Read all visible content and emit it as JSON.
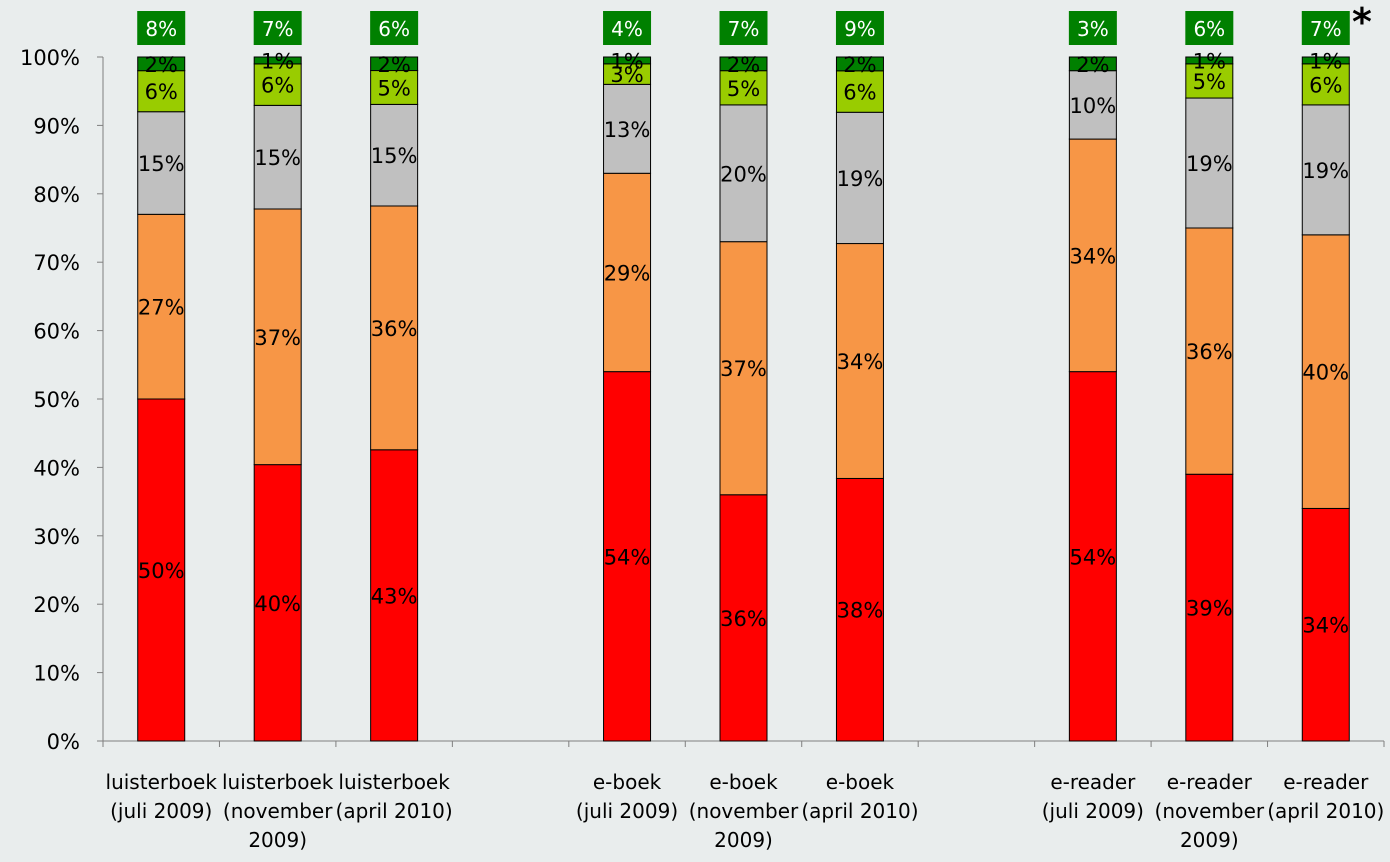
{
  "chart_data": {
    "type": "bar",
    "stacked": true,
    "title": "",
    "xlabel": "",
    "ylabel": "",
    "ylim": [
      0,
      100
    ],
    "ytick_labels": [
      "0%",
      "10%",
      "20%",
      "30%",
      "40%",
      "50%",
      "60%",
      "70%",
      "80%",
      "90%",
      "100%"
    ],
    "grid": false,
    "note": "*",
    "categories": [
      [
        "luisterboek",
        "(juli 2009)"
      ],
      [
        "luisterboek",
        "(november",
        "2009)"
      ],
      [
        "luisterboek",
        "(april 2010)"
      ],
      [],
      [
        "e-boek",
        "(juli 2009)"
      ],
      [
        "e-boek",
        "(november",
        "2009)"
      ],
      [
        "e-boek",
        "(april 2010)"
      ],
      [],
      [
        "e-reader",
        "(juli 2009)"
      ],
      [
        "e-reader",
        "(november",
        "2009)"
      ],
      [
        "e-reader",
        "(april 2010)"
      ]
    ],
    "series": [
      {
        "color": "#ff0000",
        "values": [
          50,
          40,
          43,
          null,
          54,
          36,
          38,
          null,
          54,
          39,
          34
        ],
        "labels": [
          "50%",
          "40%",
          "43%",
          null,
          "54%",
          "36%",
          "38%",
          null,
          "54%",
          "39%",
          "34%"
        ]
      },
      {
        "color": "#f79646",
        "values": [
          27,
          37,
          36,
          null,
          29,
          37,
          34,
          null,
          34,
          36,
          40
        ],
        "labels": [
          "27%",
          "37%",
          "36%",
          null,
          "29%",
          "37%",
          "34%",
          null,
          "34%",
          "36%",
          "40%"
        ]
      },
      {
        "color": "#c0c0c0",
        "values": [
          15,
          15,
          15,
          null,
          13,
          20,
          19,
          null,
          10,
          19,
          19
        ],
        "labels": [
          "15%",
          "15%",
          "15%",
          null,
          "13%",
          "20%",
          "19%",
          null,
          "10%",
          "19%",
          "19%"
        ]
      },
      {
        "color": "#99cc00",
        "values": [
          6,
          6,
          5,
          null,
          3,
          5,
          6,
          null,
          0,
          5,
          6
        ],
        "labels": [
          "6%",
          "6%",
          "5%",
          null,
          "3%",
          "5%",
          "6%",
          null,
          null,
          "5%",
          "6%"
        ]
      },
      {
        "color": "#008000",
        "values": [
          2,
          1,
          2,
          null,
          1,
          2,
          2,
          null,
          2,
          1,
          1
        ],
        "labels": [
          "2%",
          "1%",
          "2%",
          null,
          "1%",
          "2%",
          "2%",
          null,
          "2%",
          "1%",
          "1%"
        ]
      }
    ],
    "top_badges": [
      "8%",
      "7%",
      "6%",
      null,
      "4%",
      "7%",
      "9%",
      null,
      "3%",
      "6%",
      "7%"
    ],
    "badge_color": "#008000"
  }
}
